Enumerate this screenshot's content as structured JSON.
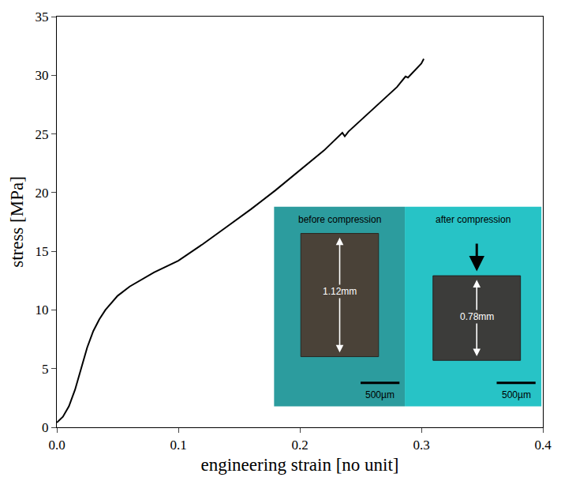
{
  "chart_data": {
    "type": "line",
    "x_label": "engineering strain [no unit]",
    "y_label": "stress [MPa]",
    "x": [
      0,
      0.005,
      0.01,
      0.015,
      0.02,
      0.025,
      0.03,
      0.035,
      0.04,
      0.05,
      0.06,
      0.08,
      0.1,
      0.12,
      0.14,
      0.16,
      0.18,
      0.2,
      0.22,
      0.235,
      0.237,
      0.24,
      0.26,
      0.28,
      0.287,
      0.289,
      0.3,
      0.302
    ],
    "values": [
      0.4,
      0.9,
      1.8,
      3.2,
      5.0,
      6.8,
      8.2,
      9.2,
      10.0,
      11.2,
      12.0,
      13.2,
      14.2,
      15.6,
      17.1,
      18.6,
      20.2,
      21.9,
      23.6,
      25.1,
      24.8,
      25.2,
      27.1,
      29.0,
      29.9,
      29.8,
      31.0,
      31.4
    ],
    "color": "#000000",
    "xlim": [
      0,
      0.4
    ],
    "ylim": [
      0,
      35
    ],
    "xticks": [
      {
        "value": 0,
        "label": "0.0"
      },
      0.1,
      0.2,
      0.3,
      0.4
    ],
    "yticks": [
      0,
      5,
      10,
      15,
      20,
      25,
      30,
      35
    ],
    "grid": false,
    "annotations": [
      "before compression",
      "1.12mm",
      "500µm",
      "after compression",
      "0.78mm",
      "500µm"
    ]
  }
}
